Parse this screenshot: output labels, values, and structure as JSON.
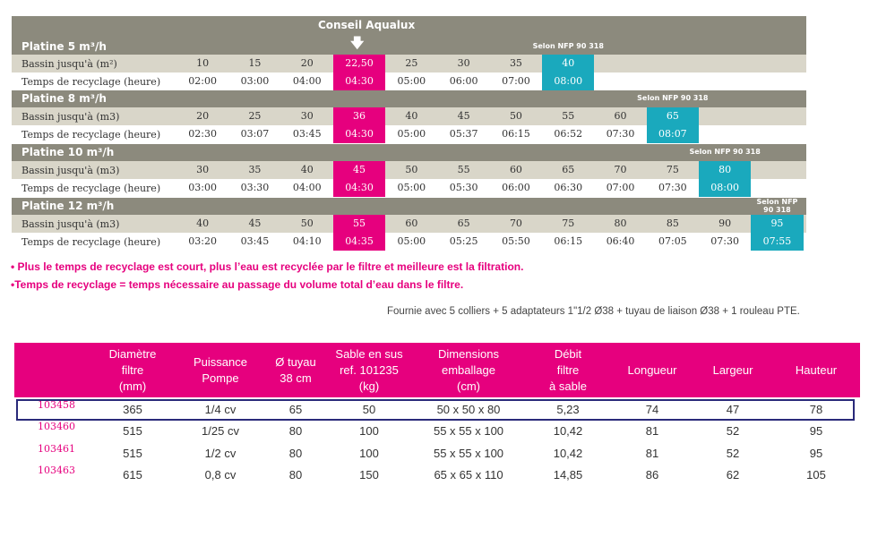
{
  "conseil": {
    "title": "Conseil Aqualux",
    "arrow": "🡇"
  },
  "labels": {
    "bassin": "Bassin jusqu'à (m3)",
    "temps": "Temps de recyclage (heure)"
  },
  "platines": [
    {
      "title": "Platine 5 m³/h",
      "nfp": "Selon NFP 90 318",
      "bassin_label": "Bassin jusqu'à (m²)",
      "temps_label": "Temps de recyclage (heure)",
      "bassin": [
        "10",
        "15",
        "20",
        "22,50",
        "25",
        "30",
        "35",
        "40"
      ],
      "temps": [
        "02:00",
        "03:00",
        "04:00",
        "04:30",
        "05:00",
        "06:00",
        "07:00",
        "08:00"
      ]
    },
    {
      "title": "Platine 8 m³/h",
      "nfp": "Selon NFP 90 318",
      "bassin_label": "Bassin jusqu'à (m3)",
      "temps_label": "Temps de recyclage (heure)",
      "bassin": [
        "20",
        "25",
        "30",
        "36",
        "40",
        "45",
        "50",
        "55",
        "60",
        "65"
      ],
      "temps": [
        "02:30",
        "03:07",
        "03:45",
        "04:30",
        "05:00",
        "05:37",
        "06:15",
        "06:52",
        "07:30",
        "08:07"
      ]
    },
    {
      "title": "Platine 10 m³/h",
      "nfp": "Selon NFP 90 318",
      "bassin_label": "Bassin jusqu'à (m3)",
      "temps_label": "Temps de recyclage (heure)",
      "bassin": [
        "30",
        "35",
        "40",
        "45",
        "50",
        "55",
        "60",
        "65",
        "70",
        "75",
        "80"
      ],
      "temps": [
        "03:00",
        "03:30",
        "04:00",
        "04:30",
        "05:00",
        "05:30",
        "06:00",
        "06:30",
        "07:00",
        "07:30",
        "08:00"
      ]
    },
    {
      "title": "Platine 12 m³/h",
      "nfp": "Selon NFP 90 318",
      "bassin_label": "Bassin jusqu'à   (m3)",
      "temps_label": "Temps de recyclage (heure)",
      "bassin": [
        "40",
        "45",
        "50",
        "55",
        "60",
        "65",
        "70",
        "75",
        "80",
        "85",
        "90",
        "95"
      ],
      "temps": [
        "03:20",
        "03:45",
        "04:10",
        "04:35",
        "05:00",
        "05:25",
        "05:50",
        "06:15",
        "06:40",
        "07:05",
        "07:30",
        "07:55"
      ]
    }
  ],
  "notes": {
    "note1": "• Plus le temps de recyclage est court, plus l’eau est recyclée par le filtre et meilleure est la filtration.",
    "note2": "•Temps de recyclage = temps nécessaire au passage du volume total d’eau dans le filtre.",
    "fourni": "Fournie avec 5 colliers + 5 adaptateurs 1\"1/2 Ø38 + tuyau de liaison Ø38 + 1 rouleau PTE."
  },
  "product_table": {
    "headers": [
      "Diamètre\nfiltre\n(mm)",
      "Puissance\nPompe",
      "Ø tuyau\n38 cm",
      "Sable en sus\nref. 101235\n(kg)",
      "Dimensions\nemballage\n(cm)",
      "Débit\nfiltre\nà sable",
      "Longueur",
      "Largeur",
      "Hauteur"
    ],
    "rows": [
      {
        "ref": "103458",
        "cells": [
          "365",
          "1/4 cv",
          "65",
          "50",
          "50 x 50 x 80",
          "5,23",
          "74",
          "47",
          "78"
        ]
      },
      {
        "ref": "103460",
        "cells": [
          "515",
          "1/25 cv",
          "80",
          "100",
          "55 x 55 x 100",
          "10,42",
          "81",
          "52",
          "95"
        ]
      },
      {
        "ref": "103461",
        "cells": [
          "515",
          "1/2 cv",
          "80",
          "100",
          "55 x 55 x 100",
          "10,42",
          "81",
          "52",
          "95"
        ]
      },
      {
        "ref": "103463",
        "cells": [
          "615",
          "0,8 cv",
          "80",
          "150",
          "65 x 65 x 110",
          "14,85",
          "86",
          "62",
          "105"
        ]
      }
    ]
  },
  "colors": {
    "magenta": "#e6007e",
    "teal": "#1aa9bd",
    "header_gray": "#8c8a7d",
    "band": "#d9d6c9"
  }
}
